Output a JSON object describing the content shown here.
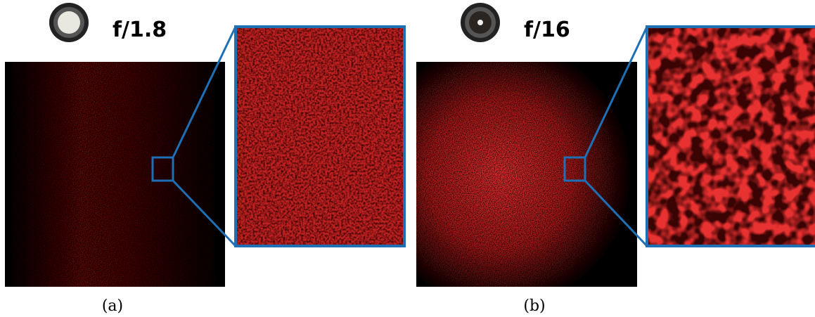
{
  "panels": [
    {
      "aperture": "f/1.8",
      "label": "(a)"
    },
    {
      "aperture": "f/16",
      "label": "(b)"
    }
  ]
}
